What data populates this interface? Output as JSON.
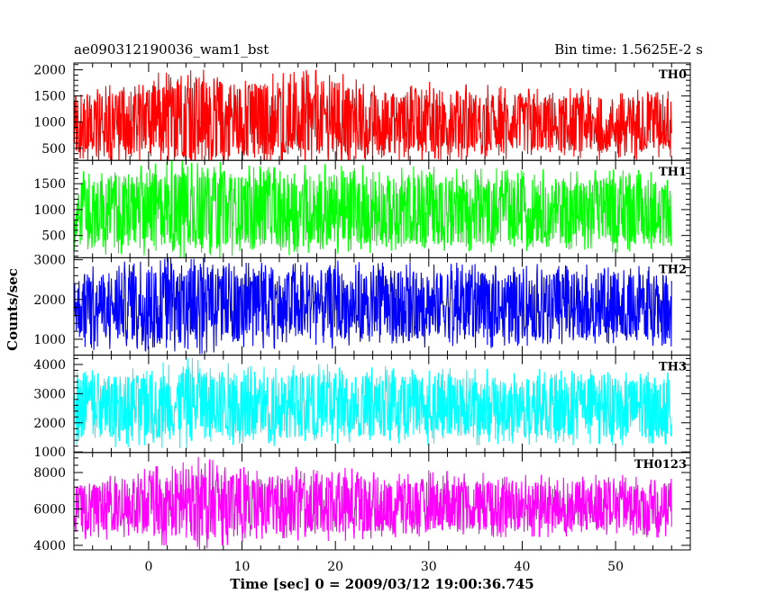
{
  "chart_data": {
    "type": "line",
    "title": "ae090312190036_wam1_bst",
    "subtitle": "Bin time: 1.5625E-2 s",
    "xlabel": "Time [sec] 0 = 2009/03/12 19:00:36.745",
    "ylabel": "Counts/sec",
    "xlim": [
      -8,
      58
    ],
    "xticks": [
      0,
      10,
      20,
      30,
      40,
      50
    ],
    "data_range_x": [
      -8,
      56
    ],
    "grid": false,
    "legend": "none",
    "panels": [
      {
        "name": "TH0",
        "color": "#ff0000",
        "ylim": [
          270,
          2130
        ],
        "yticks": [
          500,
          1000,
          1500,
          2000
        ],
        "baseline": 920,
        "envelope_low": [
          [
            -8,
            380
          ],
          [
            0,
            340
          ],
          [
            5,
            300
          ],
          [
            10,
            360
          ],
          [
            20,
            380
          ],
          [
            30,
            420
          ],
          [
            40,
            430
          ],
          [
            50,
            430
          ],
          [
            56,
            430
          ]
        ],
        "envelope_high": [
          [
            -8,
            1450
          ],
          [
            0,
            1700
          ],
          [
            5,
            1900
          ],
          [
            10,
            1750
          ],
          [
            20,
            1800
          ],
          [
            25,
            1550
          ],
          [
            30,
            1650
          ],
          [
            40,
            1500
          ],
          [
            50,
            1500
          ],
          [
            56,
            1450
          ]
        ]
      },
      {
        "name": "TH1",
        "color": "#00ff00",
        "ylim": [
          70,
          1950
        ],
        "yticks": [
          500,
          1000,
          1500
        ],
        "baseline": 900,
        "envelope_low": [
          [
            -8,
            280
          ],
          [
            0,
            300
          ],
          [
            5,
            230
          ],
          [
            10,
            330
          ],
          [
            20,
            300
          ],
          [
            30,
            340
          ],
          [
            40,
            340
          ],
          [
            50,
            340
          ],
          [
            56,
            330
          ]
        ],
        "envelope_high": [
          [
            -8,
            1550
          ],
          [
            0,
            1700
          ],
          [
            5,
            1800
          ],
          [
            10,
            1650
          ],
          [
            20,
            1700
          ],
          [
            30,
            1650
          ],
          [
            40,
            1600
          ],
          [
            50,
            1600
          ],
          [
            56,
            1550
          ]
        ]
      },
      {
        "name": "TH2",
        "color": "#0000ff",
        "ylim": [
          600,
          3050
        ],
        "yticks": [
          1000,
          2000,
          3000
        ],
        "baseline": 1800,
        "envelope_low": [
          [
            -8,
            980
          ],
          [
            0,
            950
          ],
          [
            5,
            900
          ],
          [
            10,
            980
          ],
          [
            20,
            1000
          ],
          [
            30,
            1020
          ],
          [
            40,
            1020
          ],
          [
            50,
            1020
          ],
          [
            56,
            1020
          ]
        ],
        "envelope_high": [
          [
            -8,
            2600
          ],
          [
            0,
            2750
          ],
          [
            5,
            2900
          ],
          [
            10,
            2700
          ],
          [
            20,
            2750
          ],
          [
            30,
            2700
          ],
          [
            40,
            2650
          ],
          [
            50,
            2650
          ],
          [
            56,
            2600
          ]
        ]
      },
      {
        "name": "TH3",
        "color": "#00ffff",
        "ylim": [
          980,
          4320
        ],
        "yticks": [
          1000,
          2000,
          3000,
          4000
        ],
        "baseline": 2600,
        "envelope_low": [
          [
            -8,
            1500
          ],
          [
            0,
            1450
          ],
          [
            5,
            1400
          ],
          [
            10,
            1500
          ],
          [
            20,
            1500
          ],
          [
            30,
            1520
          ],
          [
            40,
            1520
          ],
          [
            50,
            1520
          ],
          [
            56,
            1520
          ]
        ],
        "envelope_high": [
          [
            -8,
            3500
          ],
          [
            0,
            3700
          ],
          [
            5,
            3900
          ],
          [
            10,
            3650
          ],
          [
            20,
            3700
          ],
          [
            30,
            3600
          ],
          [
            40,
            3550
          ],
          [
            50,
            3550
          ],
          [
            56,
            3500
          ]
        ]
      },
      {
        "name": "TH0123",
        "color": "#ff00ff",
        "ylim": [
          3750,
          9100
        ],
        "yticks": [
          4000,
          6000,
          8000
        ],
        "baseline": 6100,
        "envelope_low": [
          [
            -8,
            4700
          ],
          [
            0,
            4600
          ],
          [
            5,
            4300
          ],
          [
            10,
            4650
          ],
          [
            20,
            4700
          ],
          [
            30,
            4800
          ],
          [
            40,
            4800
          ],
          [
            50,
            4800
          ],
          [
            56,
            4800
          ]
        ],
        "envelope_high": [
          [
            -8,
            7300
          ],
          [
            0,
            7800
          ],
          [
            5,
            8300
          ],
          [
            10,
            7900
          ],
          [
            20,
            7900
          ],
          [
            25,
            7600
          ],
          [
            30,
            7700
          ],
          [
            40,
            7500
          ],
          [
            50,
            7500
          ],
          [
            56,
            7400
          ]
        ]
      }
    ]
  }
}
